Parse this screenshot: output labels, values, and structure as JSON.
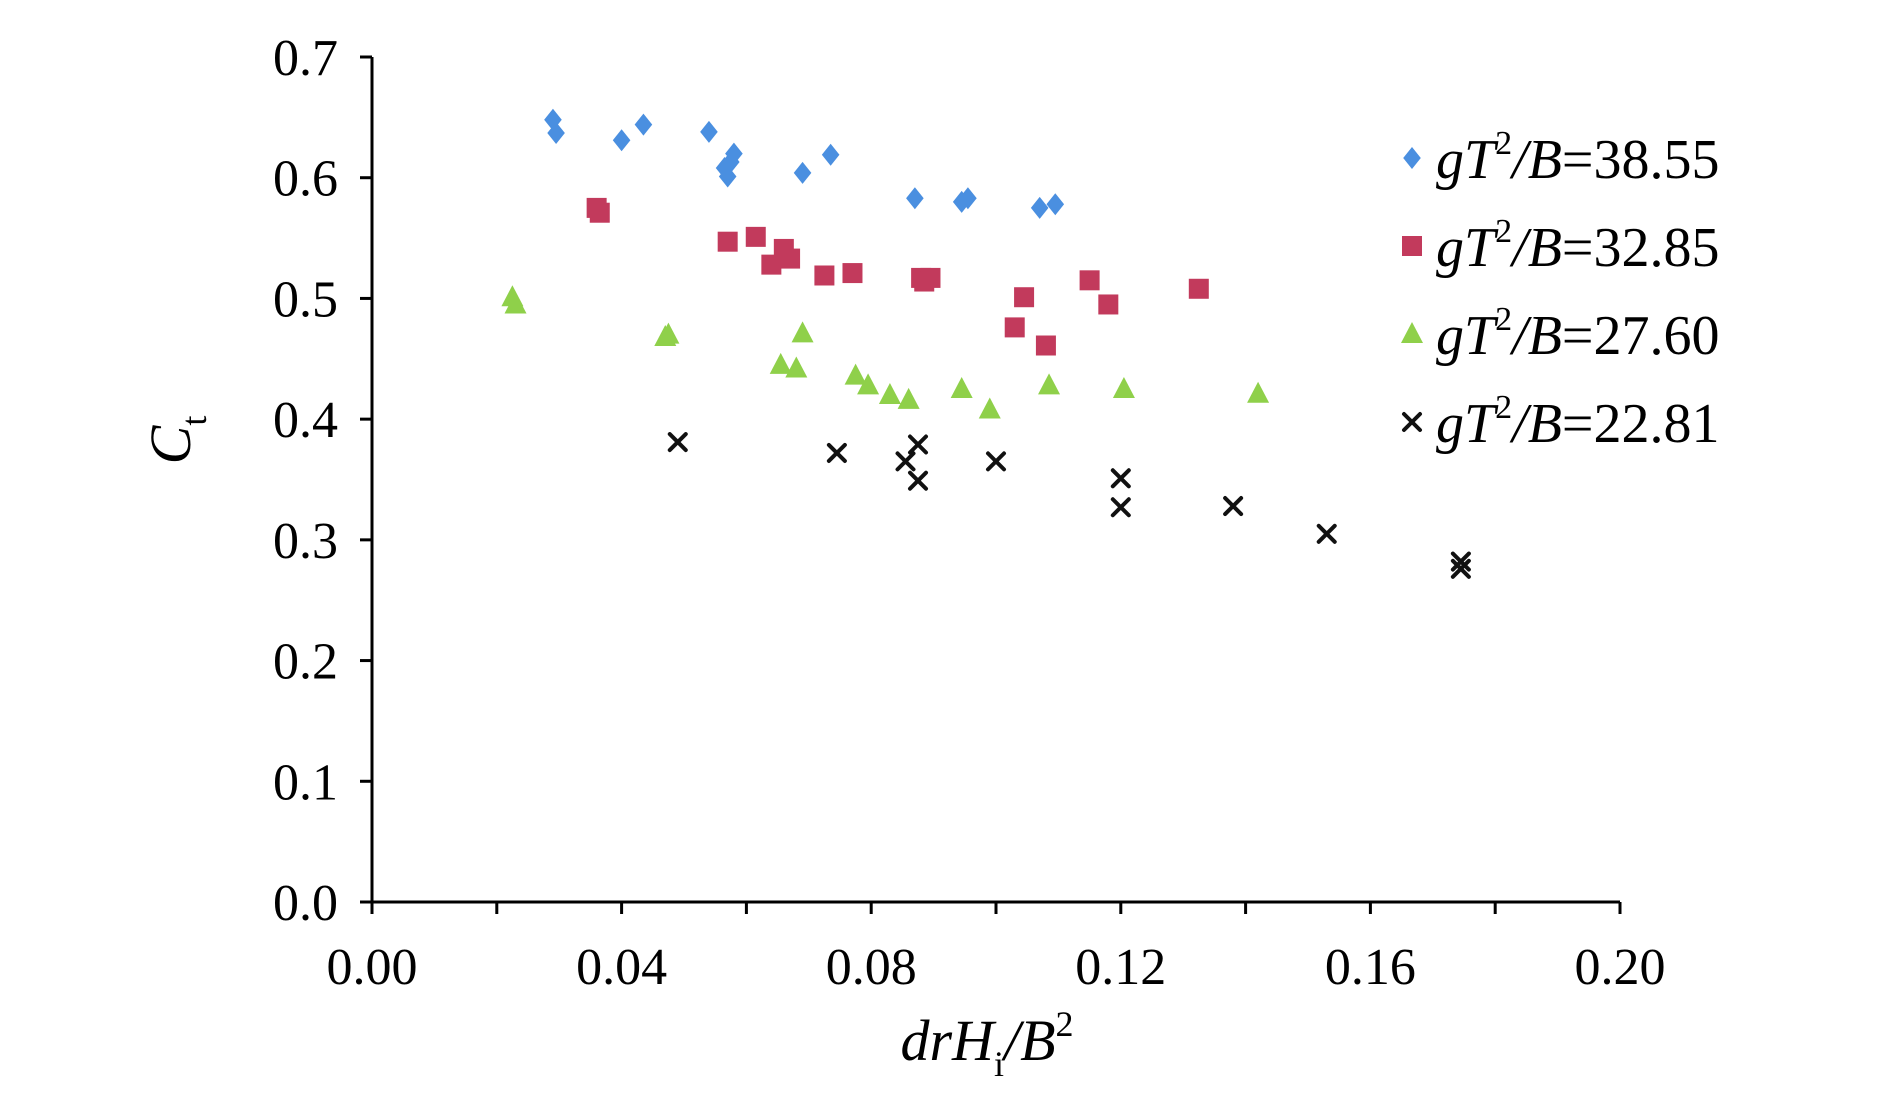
{
  "chart_data": {
    "type": "scatter",
    "xlabel": "drHi/B2",
    "xlabel_parts": {
      "a": "drH",
      "sub": "i",
      "b": "/B",
      "sup": "2"
    },
    "ylabel": "Ct",
    "ylabel_parts": {
      "a": "C",
      "sub": "t"
    },
    "xlim": [
      0.0,
      0.2
    ],
    "ylim": [
      0.0,
      0.7
    ],
    "x_ticks": [
      0.0,
      0.04,
      0.08,
      0.12,
      0.16,
      0.2
    ],
    "x_tick_labels": [
      "0.00",
      "0.04",
      "0.08",
      "0.12",
      "0.16",
      "0.20"
    ],
    "x_minor_ticks": [
      0.02,
      0.06,
      0.1,
      0.14,
      0.18
    ],
    "y_ticks": [
      0.0,
      0.1,
      0.2,
      0.3,
      0.4,
      0.5,
      0.6,
      0.7
    ],
    "y_tick_labels": [
      "0.0",
      "0.1",
      "0.2",
      "0.3",
      "0.4",
      "0.5",
      "0.6",
      "0.7"
    ],
    "grid": false,
    "legend_position": "right",
    "series": [
      {
        "name": "gT2/B=38.55",
        "name_parts": {
          "a": "gT",
          "sup": "2",
          "b": "/B=38.55"
        },
        "marker": "diamond",
        "color": "#4a8fe0",
        "points": [
          [
            0.029,
            0.648
          ],
          [
            0.0295,
            0.637
          ],
          [
            0.04,
            0.631
          ],
          [
            0.0435,
            0.644
          ],
          [
            0.054,
            0.638
          ],
          [
            0.0565,
            0.608
          ],
          [
            0.057,
            0.601
          ],
          [
            0.0575,
            0.613
          ],
          [
            0.058,
            0.62
          ],
          [
            0.069,
            0.604
          ],
          [
            0.0735,
            0.619
          ],
          [
            0.087,
            0.583
          ],
          [
            0.0945,
            0.58
          ],
          [
            0.0955,
            0.583
          ],
          [
            0.107,
            0.575
          ],
          [
            0.1095,
            0.578
          ]
        ]
      },
      {
        "name": "gT2/B=32.85",
        "name_parts": {
          "a": "gT",
          "sup": "2",
          "b": "/B=32.85"
        },
        "marker": "square",
        "color": "#c23a5c",
        "points": [
          [
            0.036,
            0.575
          ],
          [
            0.0365,
            0.571
          ],
          [
            0.057,
            0.547
          ],
          [
            0.0615,
            0.551
          ],
          [
            0.064,
            0.528
          ],
          [
            0.066,
            0.541
          ],
          [
            0.067,
            0.533
          ],
          [
            0.0725,
            0.519
          ],
          [
            0.077,
            0.521
          ],
          [
            0.088,
            0.517
          ],
          [
            0.0885,
            0.514
          ],
          [
            0.0895,
            0.517
          ],
          [
            0.103,
            0.476
          ],
          [
            0.1045,
            0.501
          ],
          [
            0.108,
            0.461
          ],
          [
            0.115,
            0.515
          ],
          [
            0.118,
            0.495
          ],
          [
            0.1325,
            0.508
          ]
        ]
      },
      {
        "name": "gT2/B=27.60",
        "name_parts": {
          "a": "gT",
          "sup": "2",
          "b": "/B=27.60"
        },
        "marker": "triangle",
        "color": "#8fd04a",
        "points": [
          [
            0.0225,
            0.501
          ],
          [
            0.023,
            0.495
          ],
          [
            0.047,
            0.468
          ],
          [
            0.0475,
            0.47
          ],
          [
            0.0655,
            0.445
          ],
          [
            0.068,
            0.442
          ],
          [
            0.069,
            0.471
          ],
          [
            0.0775,
            0.436
          ],
          [
            0.0795,
            0.428
          ],
          [
            0.083,
            0.42
          ],
          [
            0.086,
            0.416
          ],
          [
            0.0945,
            0.425
          ],
          [
            0.099,
            0.408
          ],
          [
            0.1085,
            0.428
          ],
          [
            0.1205,
            0.425
          ],
          [
            0.142,
            0.421
          ]
        ]
      },
      {
        "name": "gT2/B=22.81",
        "name_parts": {
          "a": "gT",
          "sup": "2",
          "b": "/B=22.81"
        },
        "marker": "x",
        "color": "#111111",
        "points": [
          [
            0.049,
            0.381
          ],
          [
            0.0745,
            0.372
          ],
          [
            0.0855,
            0.365
          ],
          [
            0.0875,
            0.379
          ],
          [
            0.0875,
            0.349
          ],
          [
            0.1,
            0.365
          ],
          [
            0.12,
            0.351
          ],
          [
            0.12,
            0.327
          ],
          [
            0.138,
            0.328
          ],
          [
            0.153,
            0.305
          ],
          [
            0.1745,
            0.282
          ],
          [
            0.1745,
            0.276
          ]
        ]
      }
    ]
  }
}
